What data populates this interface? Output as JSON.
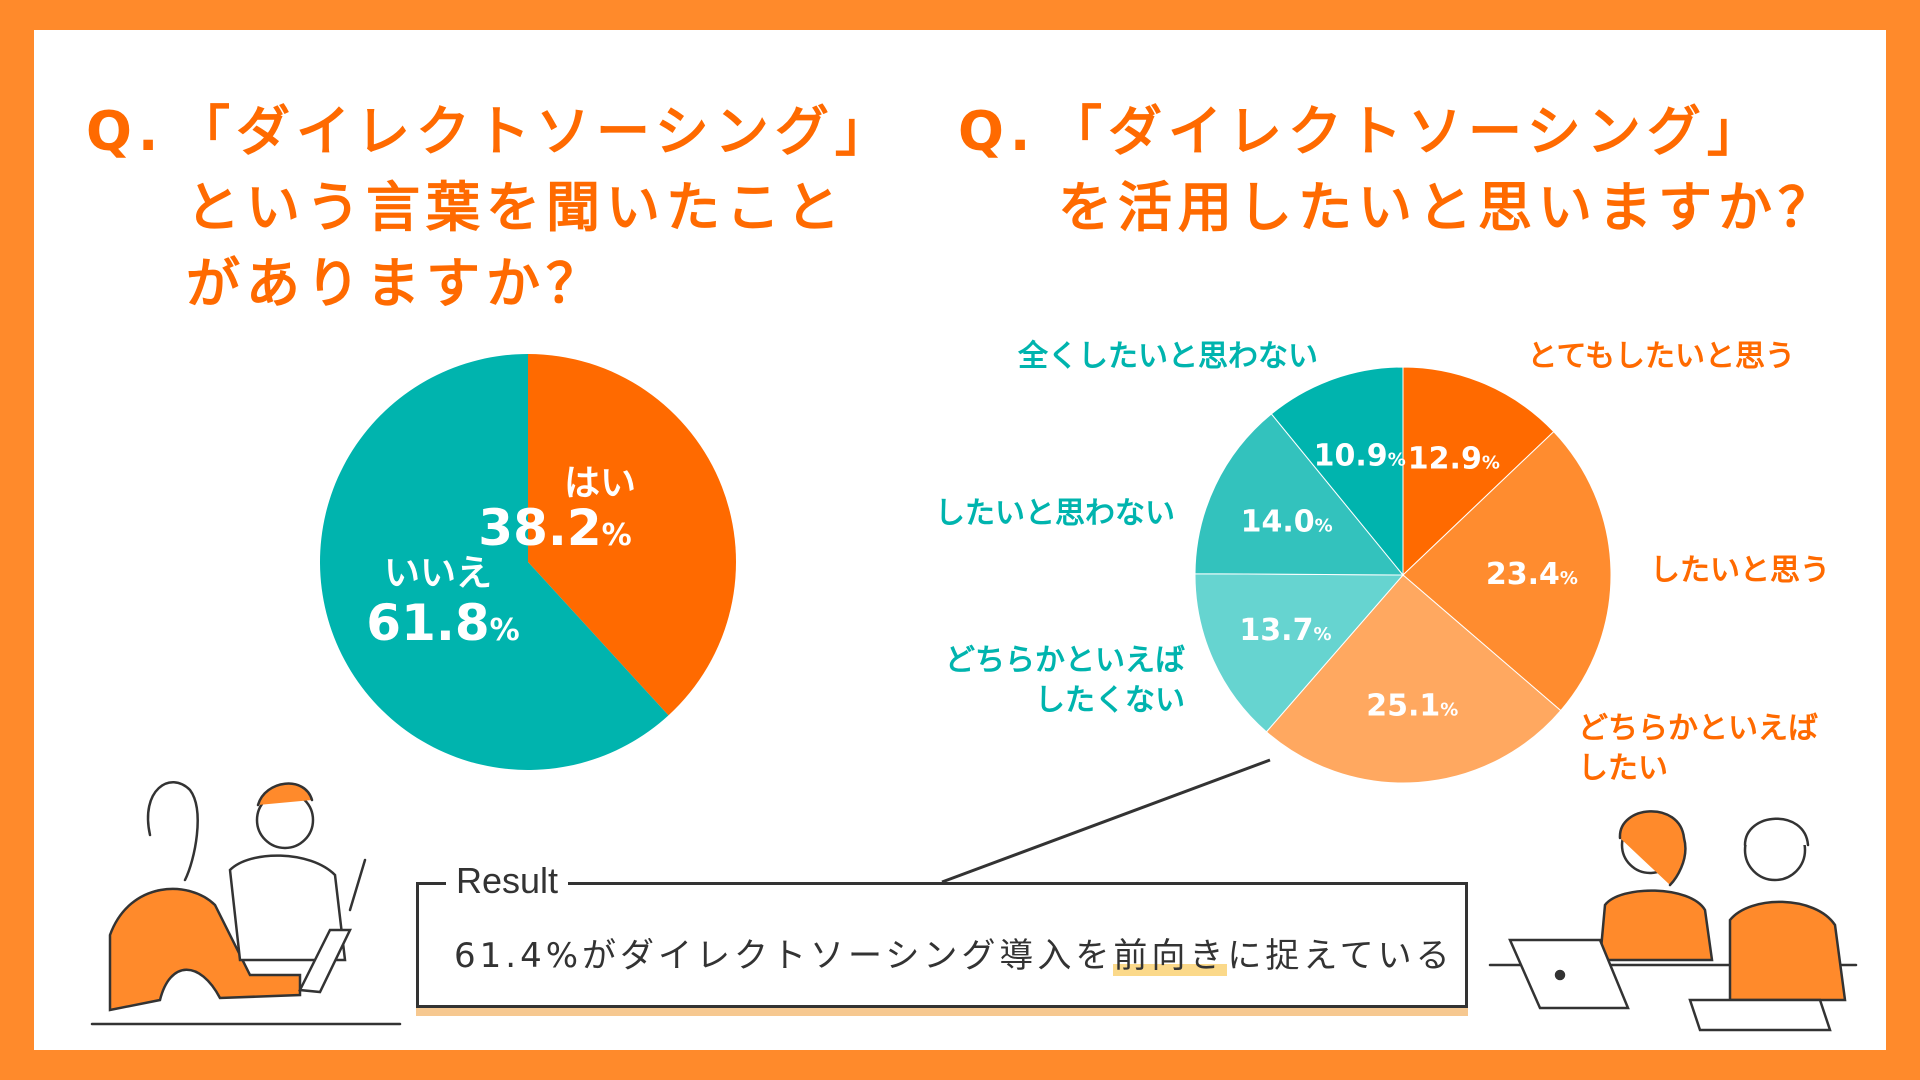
{
  "q1": {
    "prefix": "Q.",
    "lines": [
      "「ダイレクトソーシング」",
      "という言葉を聞いたこと",
      "がありますか？"
    ]
  },
  "q2": {
    "prefix": "Q.",
    "lines": [
      "「ダイレクトソーシング」",
      "を活用したいと思いますか？"
    ]
  },
  "chart_data": [
    {
      "type": "pie",
      "slices": [
        {
          "label": "はい",
          "value": 38.2,
          "color": "#ff6a00"
        },
        {
          "label": "いいえ",
          "value": 61.8,
          "color": "#00b4ae"
        }
      ],
      "unit": "%"
    },
    {
      "type": "pie",
      "slices": [
        {
          "label": "とてもしたいと思う",
          "value": 12.9,
          "color": "#ff6a00"
        },
        {
          "label": "したいと思う",
          "value": 23.4,
          "color": "#ff8c2f"
        },
        {
          "label": "どちらかといえば したい",
          "value": 25.1,
          "color": "#ffa860"
        },
        {
          "label": "どちらかといえば したくない",
          "value": 13.7,
          "color": "#66d4d0"
        },
        {
          "label": "したいと思わない",
          "value": 14.0,
          "color": "#33c2bd"
        },
        {
          "label": "全くしたいと思わない",
          "value": 10.9,
          "color": "#00b4ae"
        }
      ],
      "unit": "%"
    }
  ],
  "result": {
    "label": "Result",
    "text_before": "61.4%がダイレクトソーシング導入を",
    "text_highlight": "前向き",
    "text_after": "に捉えている"
  },
  "colors": {
    "accent": "#ff6a00",
    "teal": "#00b4ae",
    "frame": "#ff8a2b"
  }
}
